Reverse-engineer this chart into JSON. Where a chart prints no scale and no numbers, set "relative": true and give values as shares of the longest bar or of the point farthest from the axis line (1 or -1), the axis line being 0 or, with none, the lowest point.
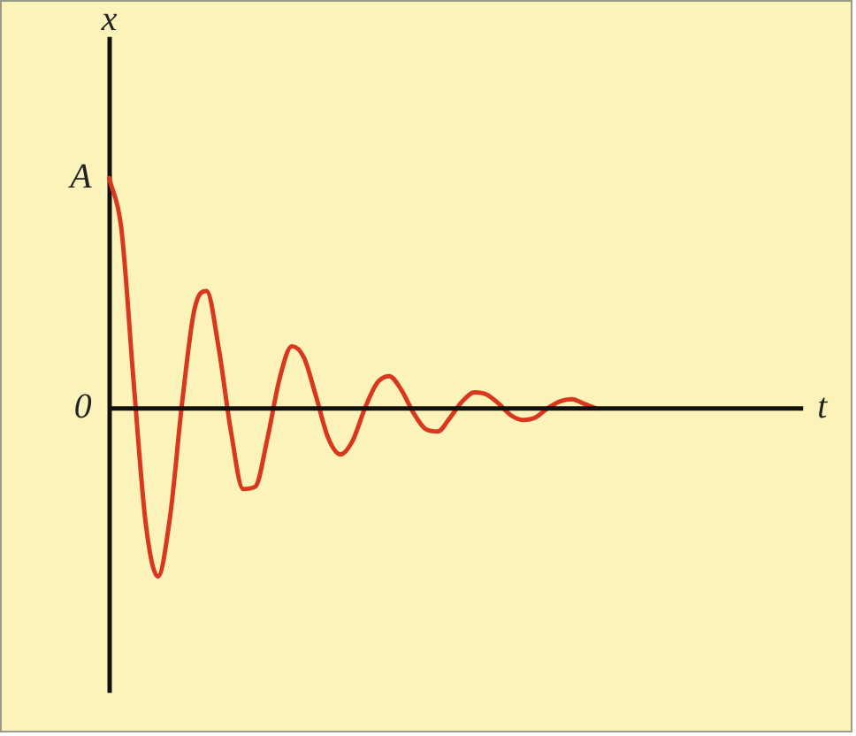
{
  "chart_data": {
    "type": "line",
    "xlabel": "t",
    "ylabel": "x",
    "categories": [
      null,
      null,
      null,
      null,
      null,
      null,
      null,
      null,
      null,
      null,
      null,
      null,
      null,
      null,
      null,
      null,
      null,
      null,
      null,
      null,
      null,
      null,
      null,
      null,
      null,
      null,
      null,
      null,
      null,
      null,
      null,
      null,
      null,
      null,
      null,
      null,
      null,
      null,
      null,
      null,
      null,
      null,
      null,
      null,
      null,
      null,
      null,
      null,
      null,
      null,
      null,
      null,
      null,
      null,
      null,
      null,
      null,
      null
    ],
    "series": [
      {
        "color": "#d9381e",
        "values": [
          1.0,
          0.78,
          0.12,
          -0.5,
          -0.73,
          -0.47,
          0.03,
          0.43,
          0.51,
          0.26,
          -0.1,
          -0.35,
          -0.34,
          -0.13,
          0.13,
          0.27,
          0.22,
          0.05,
          -0.13,
          -0.2,
          -0.14,
          0.0,
          0.11,
          0.14,
          0.08,
          -0.02,
          -0.09,
          -0.1,
          -0.04,
          0.03,
          0.07,
          0.06,
          0.02,
          -0.03,
          -0.05,
          -0.04,
          0.0,
          0.03,
          0.04,
          0.02,
          0.0,
          null,
          null,
          null,
          null,
          null,
          null,
          null,
          null,
          null,
          null,
          null,
          null,
          null,
          null,
          null,
          null,
          null
        ]
      }
    ],
    "relative": true,
    "annotations": [
      "A",
      "0"
    ],
    "legend": false,
    "marker": "none",
    "line_style": "solid"
  }
}
